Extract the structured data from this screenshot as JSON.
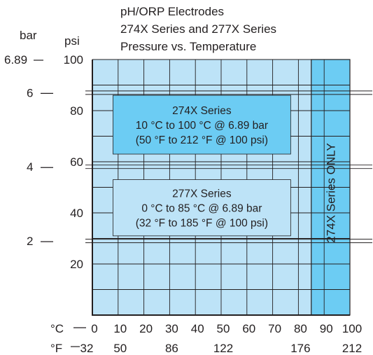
{
  "chart_data": {
    "type": "area",
    "title_lines": [
      "pH/ORP Electrodes",
      "274X Series and 277X Series",
      "Pressure vs. Temperature"
    ],
    "left_axis": {
      "unit_label": "bar",
      "ticks": [
        {
          "value": 6.89,
          "label": "6.89"
        },
        {
          "value": 6,
          "label": "6"
        },
        {
          "value": 4,
          "label": "4"
        },
        {
          "value": 2,
          "label": "2"
        }
      ]
    },
    "y_axis": {
      "unit_label": "psi",
      "range": [
        0,
        100
      ],
      "ticks": [
        {
          "value": 100,
          "label": "100"
        },
        {
          "value": 80,
          "label": "80"
        },
        {
          "value": 60,
          "label": "60"
        },
        {
          "value": 40,
          "label": "40"
        },
        {
          "value": 20,
          "label": "20"
        }
      ]
    },
    "x_axis_c": {
      "unit_label": "°C",
      "range": [
        0,
        100
      ],
      "ticks": [
        {
          "value": 0,
          "label": "0"
        },
        {
          "value": 10,
          "label": "10"
        },
        {
          "value": 20,
          "label": "20"
        },
        {
          "value": 30,
          "label": "30"
        },
        {
          "value": 40,
          "label": "40"
        },
        {
          "value": 50,
          "label": "50"
        },
        {
          "value": 60,
          "label": "60"
        },
        {
          "value": 70,
          "label": "70"
        },
        {
          "value": 80,
          "label": "80"
        },
        {
          "value": 90,
          "label": "90"
        },
        {
          "value": 100,
          "label": "100"
        }
      ]
    },
    "x_axis_f": {
      "unit_label": "°F",
      "ticks": [
        {
          "c": 0,
          "label": "32"
        },
        {
          "c": 10,
          "label": "50"
        },
        {
          "c": 30,
          "label": "86"
        },
        {
          "c": 50,
          "label": "122"
        },
        {
          "c": 80,
          "label": "176"
        },
        {
          "c": 100,
          "label": "212"
        }
      ]
    },
    "grid": true,
    "psi_gridlines": [
      10,
      20,
      30,
      40,
      50,
      60,
      70,
      80,
      90,
      100
    ],
    "bar_gridlines_psi": [
      87.02,
      58.02,
      29.01
    ],
    "regions": [
      {
        "name": "277X Series",
        "x_range_c": [
          0,
          85
        ],
        "y_range_psi": [
          0,
          100
        ],
        "color": "#bde3f7"
      },
      {
        "name": "274X Series",
        "x_range_c": [
          85,
          100
        ],
        "y_range_psi": [
          0,
          100
        ],
        "color": "#6cccf3",
        "label": "274X Series ONLY"
      }
    ],
    "annotations": [
      {
        "lines": [
          "274X Series",
          "10 °C to 100 °C @ 6.89 bar",
          "(50 °F to 212 °F @ 100 psi)"
        ],
        "box_c": [
          8,
          77
        ],
        "box_psi": [
          63,
          86
        ],
        "fill": "#6cccf3"
      },
      {
        "lines": [
          "277X Series",
          "0 °C to 85 °C @ 6.89 bar",
          "(32 °F to 185 °F @ 100 psi)"
        ],
        "box_c": [
          8,
          77
        ],
        "box_psi": [
          31,
          53
        ],
        "fill": "#bde3f7"
      }
    ]
  }
}
